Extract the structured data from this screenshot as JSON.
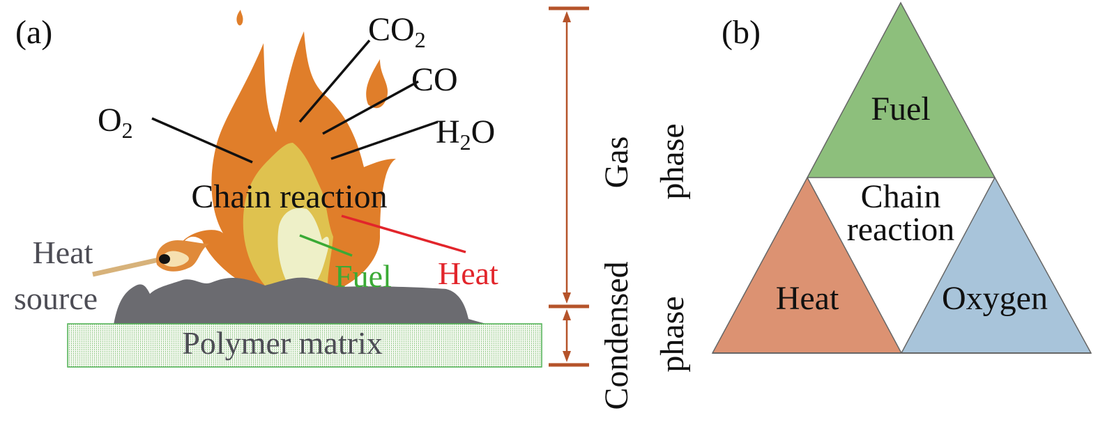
{
  "panel_a": {
    "label": "(a)",
    "species": {
      "co2": {
        "base": "CO",
        "sub": "2"
      },
      "co": {
        "text": "CO"
      },
      "o2": {
        "base": "O",
        "sub": "2"
      },
      "h2o": {
        "base1": "H",
        "sub": "2",
        "base2": "O"
      }
    },
    "chain_reaction": "Chain reaction",
    "heat_source_line1": "Heat",
    "heat_source_line2": "source",
    "fuel": "Fuel",
    "heat": "Heat",
    "polymer_matrix": "Polymer matrix",
    "gas_phase_line1": "Gas",
    "gas_phase_line2": "phase",
    "condensed_phase_line1": "Condensed",
    "condensed_phase_line2": "phase"
  },
  "panel_b": {
    "label": "(b)",
    "fuel": "Fuel",
    "chain_line1": "Chain",
    "chain_line2": "reaction",
    "heat": "Heat",
    "oxygen": "Oxygen"
  },
  "colors": {
    "flame_outer": "#e07e2a",
    "flame_mid": "#dfc24f",
    "flame_inner": "#eef0c8",
    "char": "#6b6b70",
    "matrix_border": "#4caf50",
    "phase_bar": "#b5532a",
    "fuel_green": "#3aaa35",
    "heat_red": "#e2252b",
    "grey_text": "#4d4d55",
    "tri_fuel": "#8dbf7c",
    "tri_heat": "#dc9272",
    "tri_oxygen": "#a8c4da"
  }
}
